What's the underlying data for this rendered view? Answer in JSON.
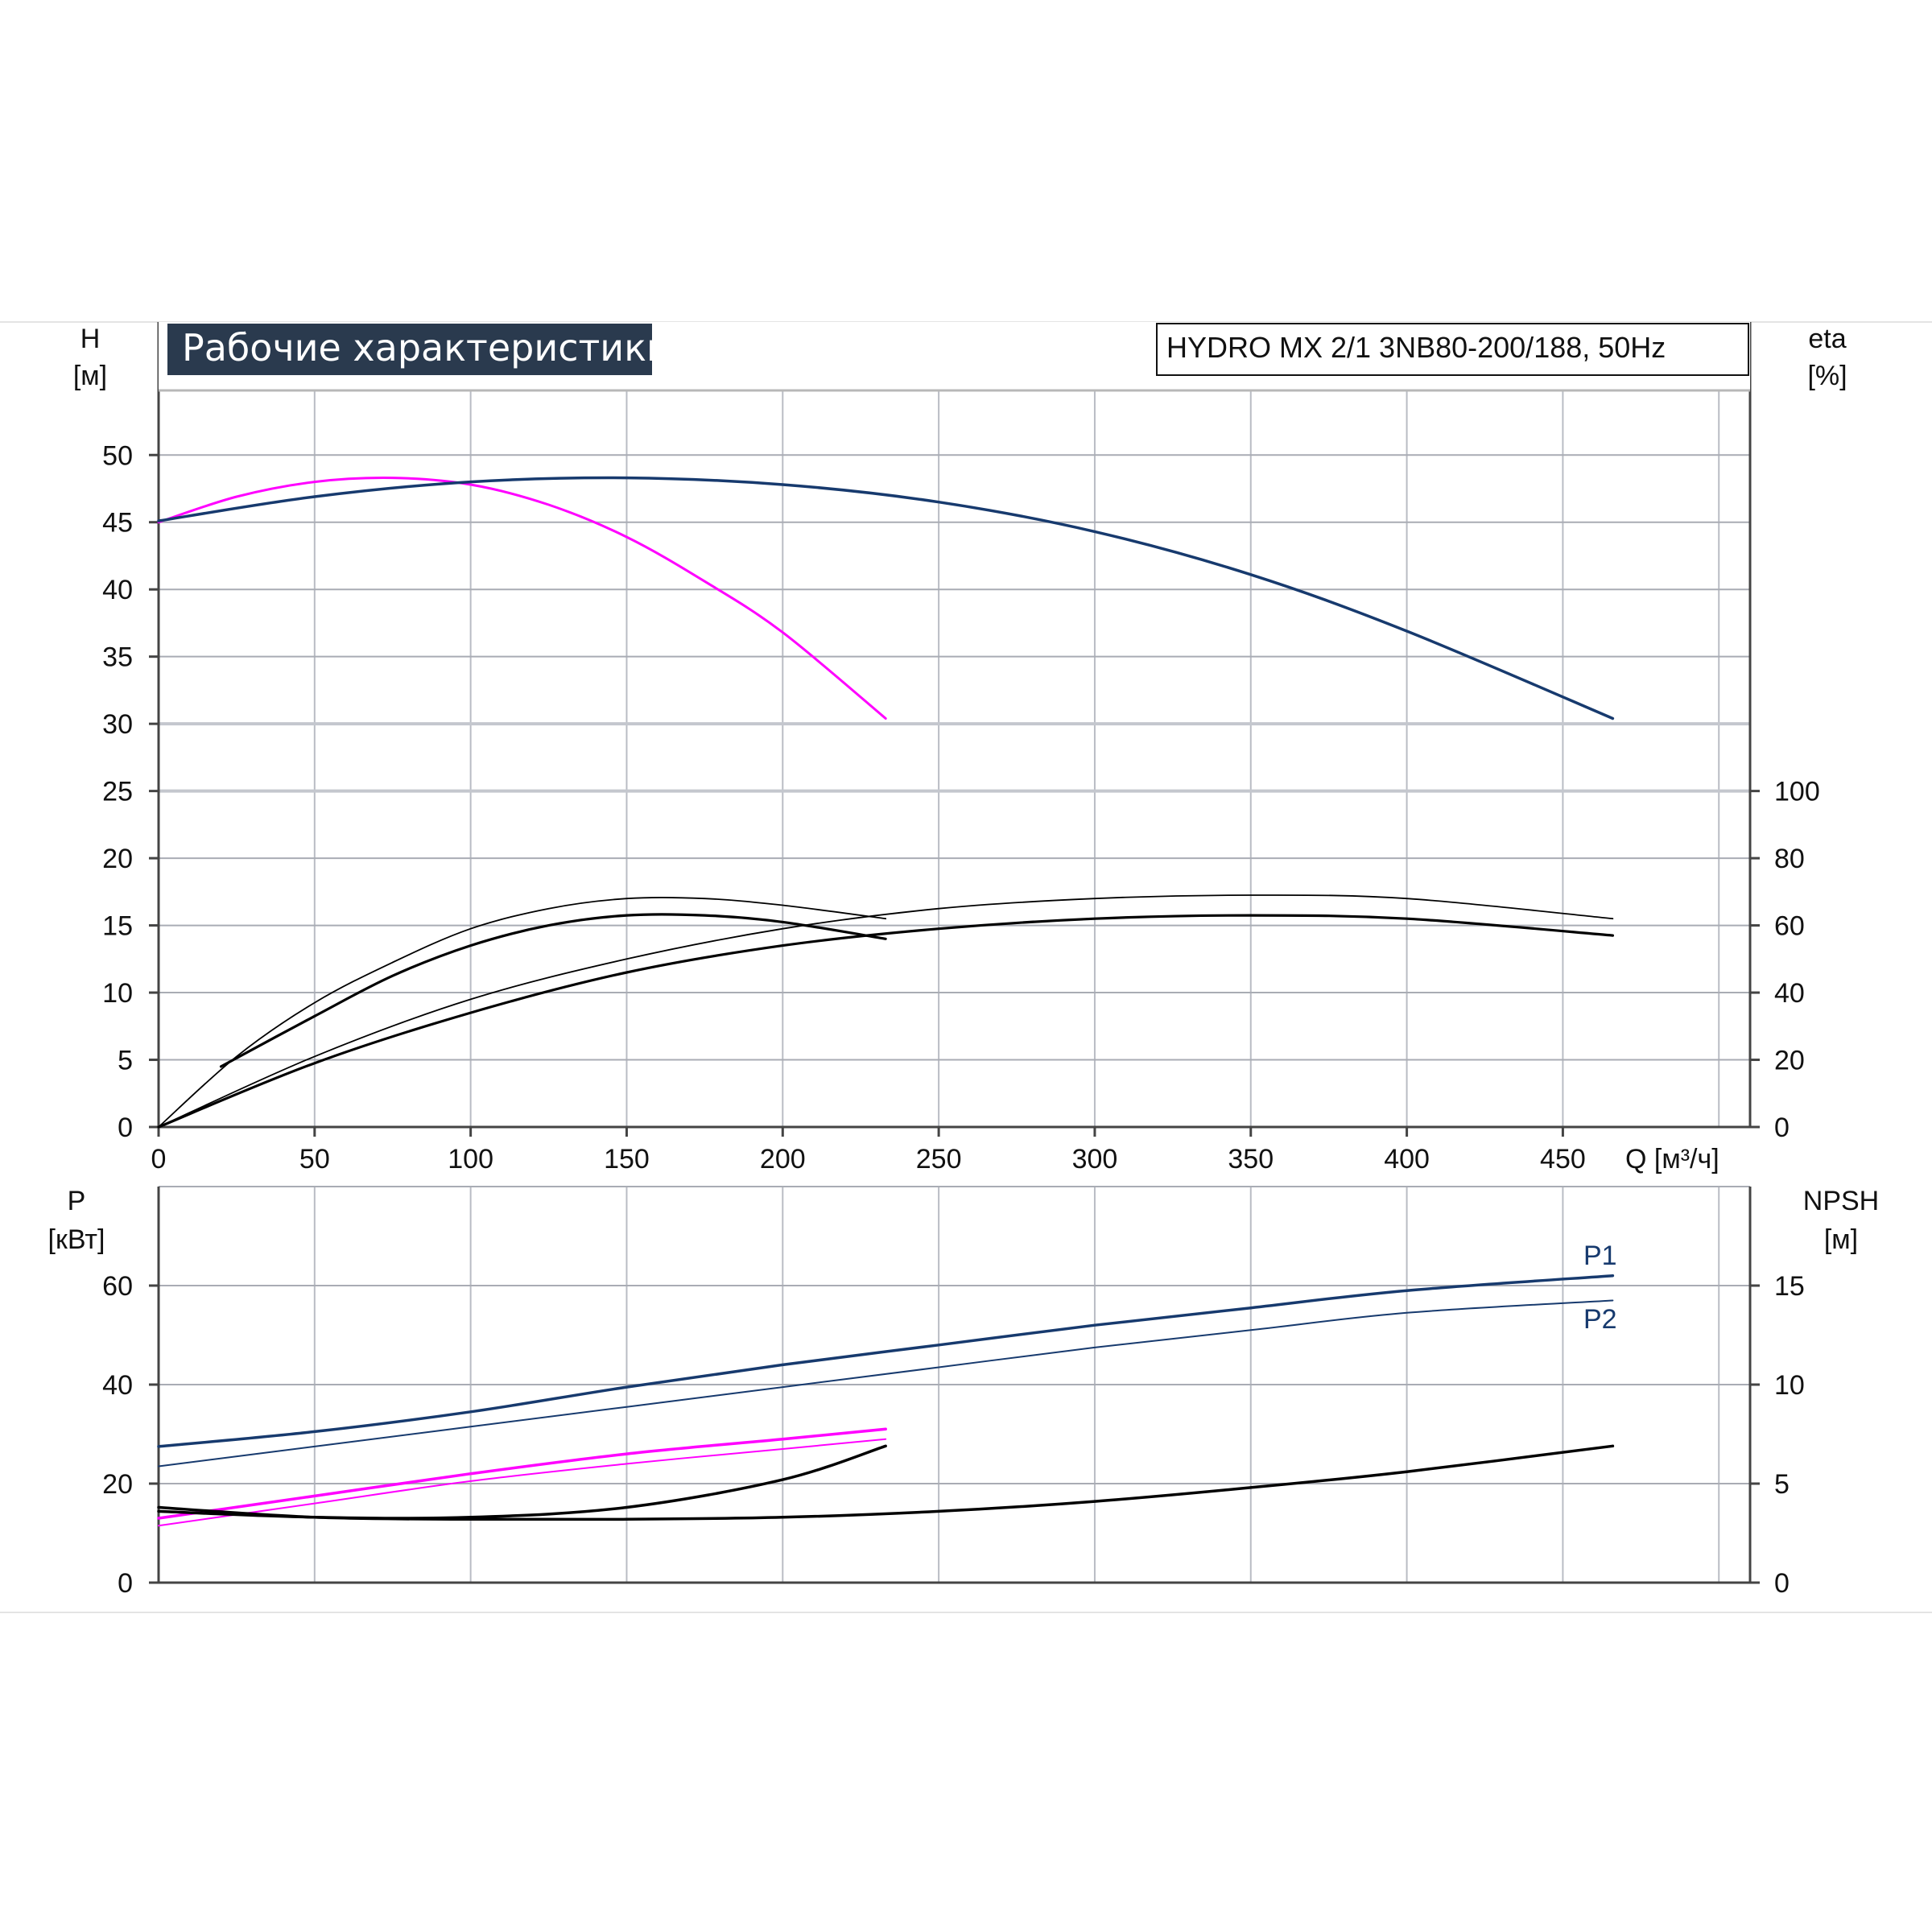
{
  "chart_data": [
    {
      "id": "performance",
      "type": "line",
      "title": "Рабочие характеристики",
      "model": "HYDRO MX 2/1 3NB80-200/188, 50Hz",
      "ylabel": "H",
      "yunit": "[м]",
      "y2label": "eta",
      "y2unit": "[%]",
      "xlabel": "Q [м³/ч]",
      "xlim": [
        0,
        510
      ],
      "ylim": [
        0,
        55
      ],
      "y2lim": [
        0,
        100
      ],
      "xticks": [
        0,
        50,
        100,
        150,
        200,
        250,
        300,
        350,
        400,
        450
      ],
      "yticks": [
        0,
        5,
        10,
        15,
        20,
        25,
        30,
        35,
        40,
        45,
        50
      ],
      "y2ticks": [
        0,
        20,
        40,
        60,
        80,
        100
      ],
      "grid": true,
      "series": [
        {
          "axis": "left",
          "color": "#ff00ff",
          "width": 3,
          "x": [
            0,
            25,
            50,
            75,
            100,
            125,
            150,
            175,
            200,
            233
          ],
          "y": [
            45,
            46.9,
            48,
            48.3,
            47.8,
            46.3,
            43.9,
            40.6,
            36.8,
            30.4
          ]
        },
        {
          "axis": "left",
          "color": "#173a6e",
          "width": 3.5,
          "x": [
            0,
            50,
            100,
            150,
            200,
            250,
            300,
            350,
            400,
            466
          ],
          "y": [
            45.1,
            46.9,
            48,
            48.3,
            47.8,
            46.5,
            44.3,
            41.1,
            36.9,
            30.4
          ]
        },
        {
          "axis": "right",
          "color": "#000000",
          "width": 1.8,
          "x": [
            0,
            25,
            50,
            75,
            100,
            125,
            150,
            175,
            200,
            233
          ],
          "y": [
            0,
            21,
            37,
            49,
            59,
            65,
            68,
            68,
            66,
            62
          ]
        },
        {
          "axis": "right",
          "color": "#000000",
          "width": 3.2,
          "x": [
            20,
            50,
            75,
            100,
            125,
            150,
            175,
            200,
            233
          ],
          "y": [
            18,
            33,
            45,
            54,
            60,
            63,
            63,
            61,
            56
          ]
        },
        {
          "axis": "right",
          "color": "#000000",
          "width": 1.8,
          "x": [
            0,
            50,
            100,
            150,
            200,
            250,
            300,
            350,
            400,
            466
          ],
          "y": [
            0,
            21,
            38,
            50,
            59,
            65,
            68,
            69,
            68,
            62
          ]
        },
        {
          "axis": "right",
          "color": "#000000",
          "width": 3.2,
          "x": [
            0,
            50,
            100,
            150,
            200,
            250,
            300,
            350,
            400,
            466
          ],
          "y": [
            0,
            19,
            34,
            46,
            54,
            59,
            62,
            63,
            62,
            57
          ]
        }
      ]
    },
    {
      "id": "power",
      "type": "line",
      "ylabel": "P",
      "yunit": "[кВт]",
      "y2label": "NPSH",
      "y2unit": "[м]",
      "xlim": [
        0,
        510
      ],
      "ylim": [
        0,
        80
      ],
      "y2lim": [
        0,
        20
      ],
      "yticks": [
        0,
        20,
        40,
        60
      ],
      "y2ticks": [
        0,
        5,
        10,
        15
      ],
      "grid": true,
      "series": [
        {
          "name": "P1",
          "axis": "left",
          "color": "#173a6e",
          "width": 3.5,
          "x": [
            0,
            50,
            100,
            150,
            200,
            250,
            300,
            350,
            400,
            466
          ],
          "y": [
            27.5,
            30.5,
            34.5,
            39.5,
            44,
            48,
            52,
            55.5,
            59,
            62
          ]
        },
        {
          "name": "P2",
          "axis": "left",
          "color": "#173a6e",
          "width": 2,
          "x": [
            0,
            50,
            100,
            150,
            200,
            250,
            300,
            350,
            400,
            466
          ],
          "y": [
            23.5,
            27.5,
            31.5,
            35.5,
            39.5,
            43.5,
            47.5,
            51,
            54.5,
            57
          ]
        },
        {
          "axis": "left",
          "color": "#ff00ff",
          "width": 3.5,
          "x": [
            0,
            50,
            100,
            150,
            200,
            233
          ],
          "y": [
            13,
            17.5,
            22,
            26,
            29,
            31
          ]
        },
        {
          "axis": "left",
          "color": "#ff00ff",
          "width": 2,
          "x": [
            0,
            50,
            100,
            150,
            200,
            233
          ],
          "y": [
            11.5,
            16,
            20.5,
            24,
            27,
            29
          ]
        },
        {
          "axis": "right",
          "color": "#000000",
          "width": 3.5,
          "x": [
            0,
            50,
            100,
            150,
            200,
            233
          ],
          "y": [
            3.6,
            3.3,
            3.3,
            3.8,
            5.2,
            6.9
          ]
        },
        {
          "axis": "right",
          "color": "#000000",
          "width": 3.5,
          "x": [
            0,
            50,
            100,
            150,
            200,
            250,
            300,
            350,
            400,
            466
          ],
          "y": [
            3.8,
            3.3,
            3.2,
            3.2,
            3.3,
            3.6,
            4.1,
            4.8,
            5.6,
            6.9
          ]
        }
      ]
    }
  ]
}
